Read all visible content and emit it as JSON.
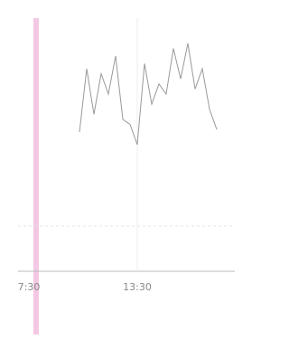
{
  "chart_data": {
    "type": "line",
    "categories": [
      null,
      "7:30",
      null,
      null,
      null,
      null,
      null,
      null,
      null,
      null,
      null,
      null,
      null,
      null,
      null,
      null,
      "13:30",
      null,
      null,
      null,
      null,
      null,
      null,
      null,
      null,
      null,
      null,
      null,
      null,
      null
    ],
    "series": [
      {
        "color": "#555555",
        "values": [
          null,
          null,
          null,
          null,
          null,
          null,
          null,
          null,
          55,
          80,
          62,
          78,
          70,
          85,
          60,
          58,
          50,
          82,
          66,
          74,
          70,
          88,
          76,
          90,
          72,
          80,
          64,
          56,
          null,
          null
        ]
      }
    ],
    "ylim": [
      0,
      100
    ]
  }
}
